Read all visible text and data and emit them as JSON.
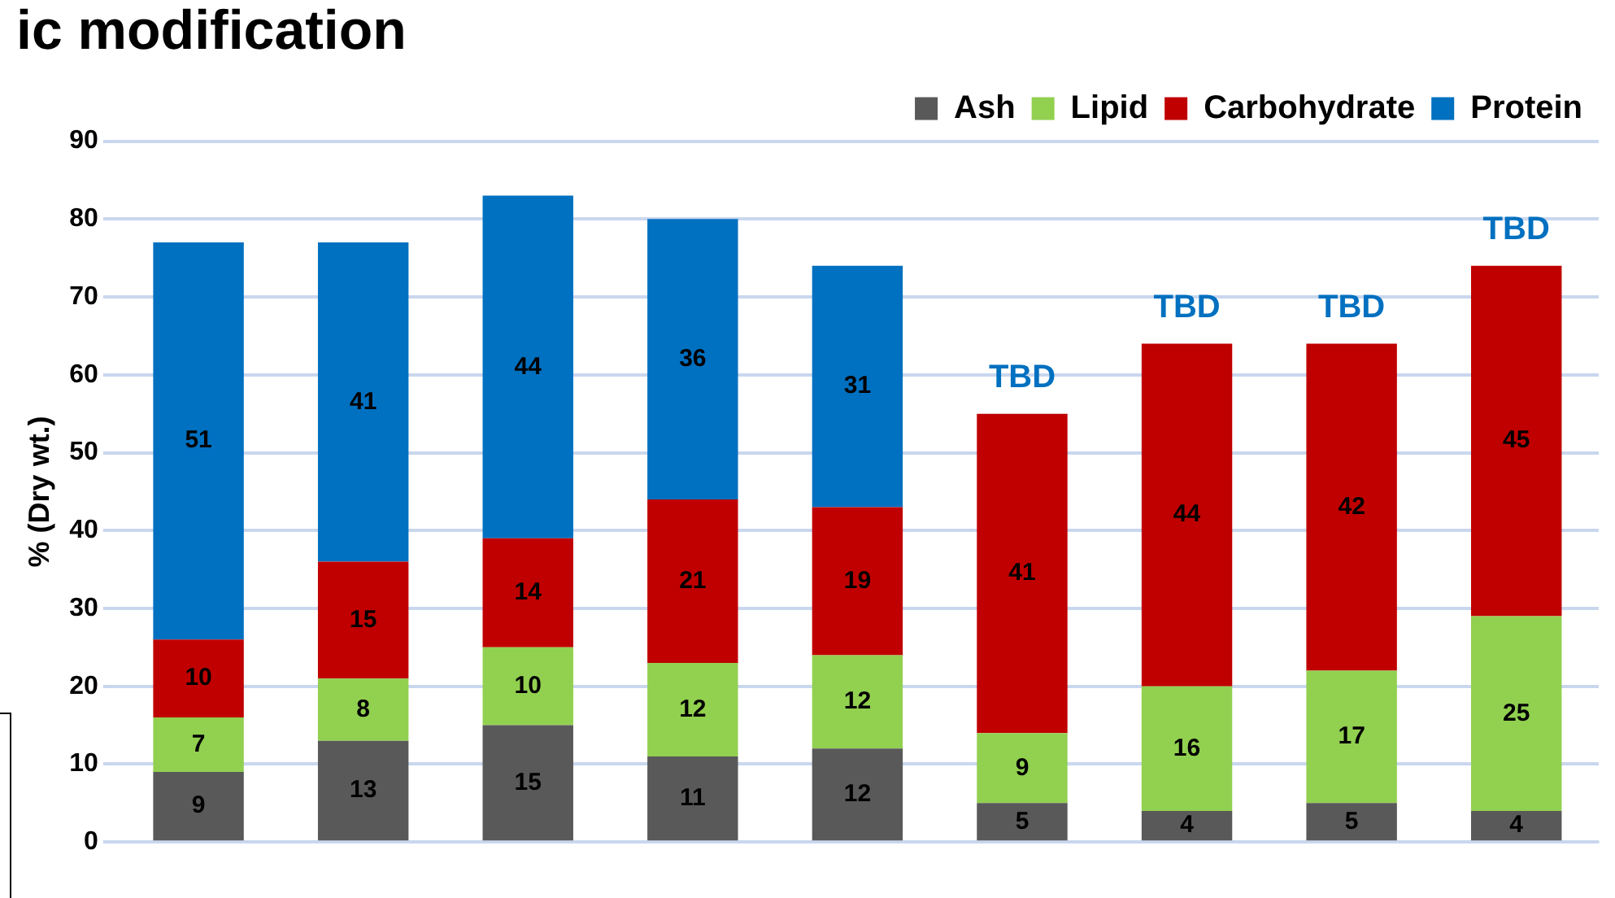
{
  "chart_data": {
    "type": "bar",
    "title": "ic modification",
    "ylabel": "% (Dry wt.)",
    "stacked": true,
    "categories": [
      null,
      null,
      null,
      null,
      null,
      null,
      null,
      null,
      null
    ],
    "series": [
      {
        "name": "Ash",
        "color": "#595959",
        "values": [
          9,
          13,
          15,
          11,
          12,
          5,
          4,
          5,
          4
        ]
      },
      {
        "name": "Lipid",
        "color": "#92d050",
        "values": [
          7,
          8,
          10,
          12,
          12,
          9,
          16,
          17,
          25
        ]
      },
      {
        "name": "Carbohydrate",
        "color": "#c00000",
        "values": [
          10,
          15,
          14,
          21,
          19,
          41,
          44,
          42,
          45
        ]
      },
      {
        "name": "Protein",
        "color": "#0070c0",
        "values": [
          51,
          41,
          44,
          36,
          31,
          null,
          null,
          null,
          null
        ]
      }
    ],
    "ylim": [
      0,
      90
    ],
    "yticks": [
      0,
      10,
      20,
      30,
      40,
      50,
      60,
      70,
      80,
      90
    ],
    "grid": "y",
    "legend": "top right",
    "data_labels": true,
    "annotations": [
      "TBD",
      "TBD",
      "TBD",
      "TBD"
    ]
  }
}
